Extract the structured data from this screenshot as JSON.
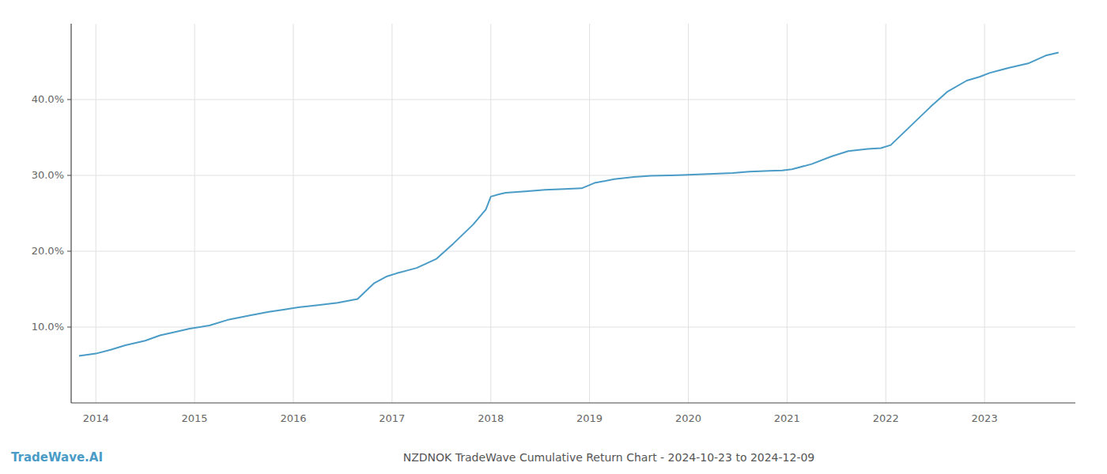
{
  "chart_data": {
    "type": "line",
    "title": "NZDNOK TradeWave Cumulative Return Chart - 2024-10-23 to 2024-12-09",
    "annotations": [
      "TradeWave.AI"
    ],
    "color": "#4a9cc7",
    "grid": true,
    "x": [
      2013.83,
      2014.0,
      2014.15,
      2014.3,
      2014.5,
      2014.65,
      2014.82,
      2014.95,
      2015.15,
      2015.35,
      2015.55,
      2015.75,
      2015.9,
      2016.05,
      2016.25,
      2016.45,
      2016.65,
      2016.82,
      2016.95,
      2017.05,
      2017.25,
      2017.45,
      2017.62,
      2017.82,
      2017.95,
      2018.0,
      2018.08,
      2018.15,
      2018.35,
      2018.55,
      2018.75,
      2018.92,
      2019.05,
      2019.25,
      2019.45,
      2019.62,
      2019.82,
      2019.95,
      2020.05,
      2020.25,
      2020.45,
      2020.62,
      2020.82,
      2020.95,
      2021.05,
      2021.25,
      2021.45,
      2021.62,
      2021.82,
      2021.95,
      2022.05,
      2022.25,
      2022.45,
      2022.62,
      2022.82,
      2022.95,
      2023.05,
      2023.25,
      2023.45,
      2023.62,
      2023.75
    ],
    "values": [
      6.2,
      6.5,
      7.0,
      7.6,
      8.2,
      8.9,
      9.4,
      9.8,
      10.2,
      11.0,
      11.5,
      12.0,
      12.3,
      12.6,
      12.9,
      13.2,
      13.7,
      15.8,
      16.7,
      17.1,
      17.8,
      19.0,
      21.0,
      23.5,
      25.5,
      27.2,
      27.5,
      27.7,
      27.9,
      28.1,
      28.2,
      28.3,
      29.0,
      29.5,
      29.8,
      29.95,
      30.0,
      30.05,
      30.1,
      30.2,
      30.3,
      30.5,
      30.6,
      30.65,
      30.8,
      31.5,
      32.5,
      33.2,
      33.5,
      33.6,
      34.0,
      36.5,
      39.0,
      41.0,
      42.5,
      43.0,
      43.5,
      44.2,
      44.8,
      45.8,
      46.2
    ],
    "xlim": [
      2013.75,
      2023.92
    ],
    "xticks": [
      2014,
      2015,
      2016,
      2017,
      2018,
      2019,
      2020,
      2021,
      2022,
      2023
    ],
    "ylim": [
      0,
      50
    ],
    "yticks": [
      {
        "value": 10.0,
        "label": "10.0%"
      },
      {
        "value": 20.0,
        "label": "20.0%"
      },
      {
        "value": 30.0,
        "label": "30.0%"
      },
      {
        "value": 40.0,
        "label": "40.0%"
      }
    ]
  }
}
